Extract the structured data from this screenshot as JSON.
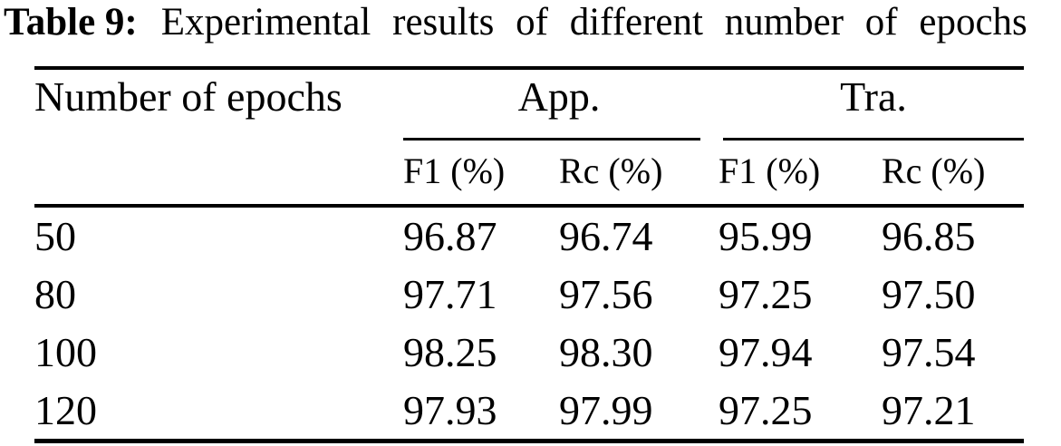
{
  "title": {
    "label": "Table 9:",
    "text": "Experimental results of different number of epochs"
  },
  "table": {
    "corner_header": "Number of epochs",
    "group_headers": [
      "App.",
      "Tra."
    ],
    "sub_headers": [
      "F1 (%)",
      "Rc (%)",
      "F1 (%)",
      "Rc (%)"
    ],
    "rows": [
      {
        "epochs": "50",
        "values": [
          "96.87",
          "96.74",
          "95.99",
          "96.85"
        ]
      },
      {
        "epochs": "80",
        "values": [
          "97.71",
          "97.56",
          "97.25",
          "97.50"
        ]
      },
      {
        "epochs": "100",
        "values": [
          "98.25",
          "98.30",
          "97.94",
          "97.54"
        ]
      },
      {
        "epochs": "120",
        "values": [
          "97.93",
          "97.99",
          "97.25",
          "97.21"
        ]
      }
    ]
  },
  "chart_data": {
    "type": "table",
    "title": "Table 9: Experimental results of different number of epochs",
    "columns": [
      "Number of epochs",
      "App. F1 (%)",
      "App. Rc (%)",
      "Tra. F1 (%)",
      "Tra. Rc (%)"
    ],
    "rows": [
      [
        50,
        96.87,
        96.74,
        95.99,
        96.85
      ],
      [
        80,
        97.71,
        97.56,
        97.25,
        97.5
      ],
      [
        100,
        98.25,
        98.3,
        97.94,
        97.54
      ],
      [
        120,
        97.93,
        97.99,
        97.25,
        97.21
      ]
    ]
  },
  "colors": {
    "background": "#ffffff",
    "text": "#000000",
    "rule": "#000000"
  }
}
